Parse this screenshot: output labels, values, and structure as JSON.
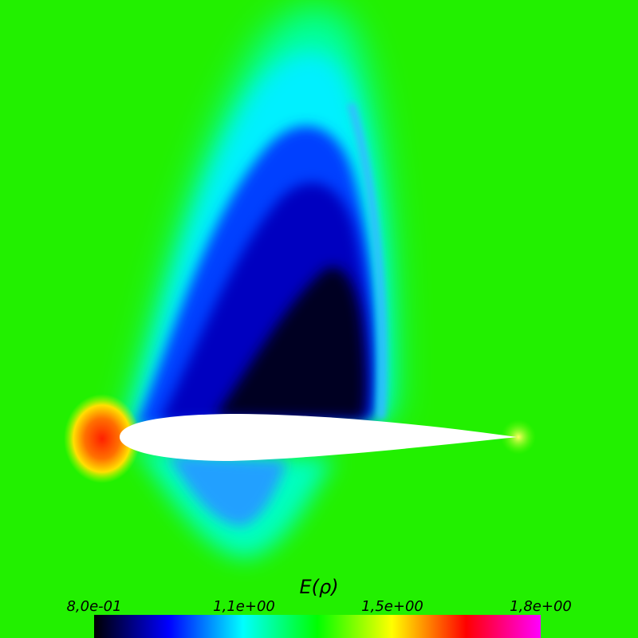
{
  "colorbar": {
    "title": "E(ρ)",
    "ticks": [
      "8,0e-01",
      "1,1e+00",
      "1,5e+00",
      "1,8e+00"
    ],
    "stops": [
      "#000000",
      "#0000ff",
      "#00ffff",
      "#00ff00",
      "#ffff00",
      "#ff0000",
      "#ff00ff"
    ]
  },
  "colors": {
    "freestream": "#22f000",
    "airfoil": "#ffffff"
  }
}
